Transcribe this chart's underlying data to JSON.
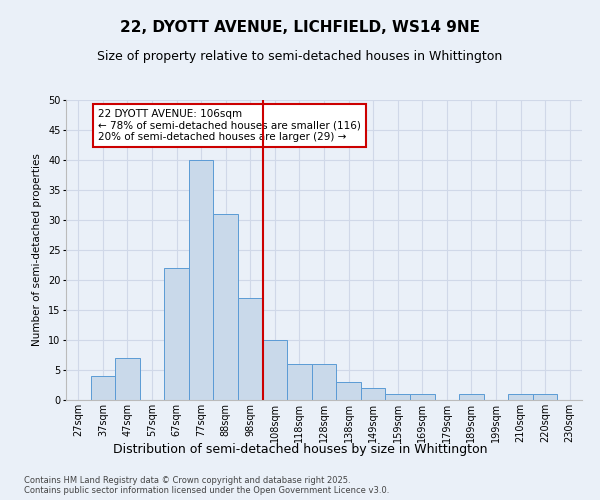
{
  "title1": "22, DYOTT AVENUE, LICHFIELD, WS14 9NE",
  "title2": "Size of property relative to semi-detached houses in Whittington",
  "xlabel": "Distribution of semi-detached houses by size in Whittington",
  "ylabel": "Number of semi-detached properties",
  "categories": [
    "27sqm",
    "37sqm",
    "47sqm",
    "57sqm",
    "67sqm",
    "77sqm",
    "88sqm",
    "98sqm",
    "108sqm",
    "118sqm",
    "128sqm",
    "138sqm",
    "149sqm",
    "159sqm",
    "169sqm",
    "179sqm",
    "189sqm",
    "199sqm",
    "210sqm",
    "220sqm",
    "230sqm"
  ],
  "values": [
    0,
    4,
    7,
    0,
    22,
    40,
    31,
    17,
    10,
    6,
    6,
    3,
    2,
    1,
    1,
    0,
    1,
    0,
    1,
    1,
    0
  ],
  "bar_color": "#c9d9ea",
  "bar_edge_color": "#5b9bd5",
  "highlight_color": "#cc0000",
  "annotation_text": "22 DYOTT AVENUE: 106sqm\n← 78% of semi-detached houses are smaller (116)\n20% of semi-detached houses are larger (29) →",
  "annotation_box_color": "#ffffff",
  "annotation_box_edge": "#cc0000",
  "ylim": [
    0,
    50
  ],
  "yticks": [
    0,
    5,
    10,
    15,
    20,
    25,
    30,
    35,
    40,
    45,
    50
  ],
  "grid_color": "#d0d8e8",
  "background_color": "#eaf0f8",
  "footer_text": "Contains HM Land Registry data © Crown copyright and database right 2025.\nContains public sector information licensed under the Open Government Licence v3.0.",
  "title1_fontsize": 11,
  "title2_fontsize": 9,
  "xlabel_fontsize": 9,
  "ylabel_fontsize": 7.5,
  "tick_fontsize": 7,
  "annotation_fontsize": 7.5,
  "footer_fontsize": 6
}
